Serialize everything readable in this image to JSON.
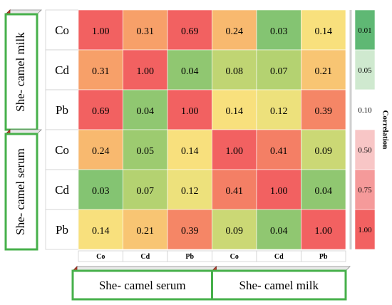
{
  "chart_data": {
    "type": "heatmap",
    "row_groups": [
      "She- camel milk",
      "She- camel serum"
    ],
    "col_groups": [
      "She- camel serum",
      "She- camel milk"
    ],
    "row_labels": [
      "Co",
      "Cd",
      "Pb",
      "Co",
      "Cd",
      "Pb"
    ],
    "col_labels": [
      "Co",
      "Cd",
      "Pb",
      "Co",
      "Cd",
      "Pb"
    ],
    "values": [
      [
        1.0,
        0.31,
        0.69,
        0.24,
        0.03,
        0.14
      ],
      [
        0.31,
        1.0,
        0.04,
        0.08,
        0.07,
        0.21
      ],
      [
        0.69,
        0.04,
        1.0,
        0.14,
        0.12,
        0.39
      ],
      [
        0.24,
        0.05,
        0.14,
        1.0,
        0.41,
        0.09
      ],
      [
        0.03,
        0.07,
        0.12,
        0.41,
        1.0,
        0.04
      ],
      [
        0.14,
        0.21,
        0.39,
        0.09,
        0.04,
        1.0
      ]
    ],
    "value_format": "2dp",
    "legend": {
      "title": "Correlation",
      "values": [
        0.01,
        0.05,
        0.1,
        0.5,
        0.75,
        1.0
      ],
      "labels": [
        "0.01",
        "0.05",
        "0.10",
        "0.50",
        "0.75",
        "1.00"
      ]
    },
    "colors": {
      "green": "#5fb874",
      "light_green": "#a9cf6f",
      "yellow": "#f8e47e",
      "orange": "#f8aa6a",
      "red": "#f26161",
      "group_border": "#47b04b",
      "bevel": "#c0392b"
    }
  }
}
